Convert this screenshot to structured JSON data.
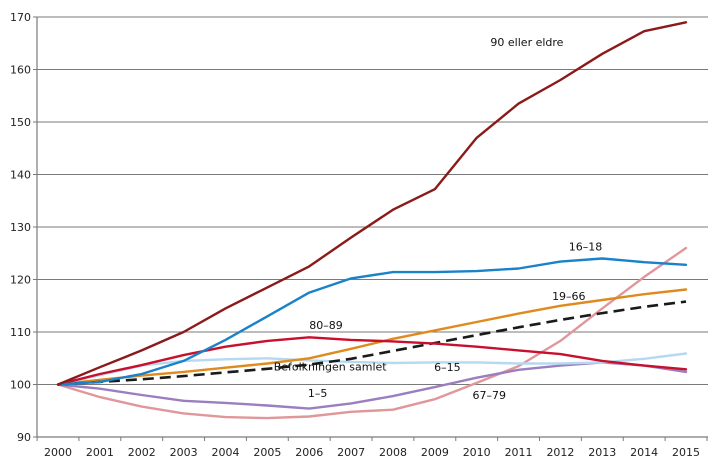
{
  "chart_data": {
    "type": "line",
    "title": "",
    "xlabel": "",
    "ylabel": "",
    "x": [
      2000,
      2001,
      2002,
      2003,
      2004,
      2005,
      2006,
      2007,
      2008,
      2009,
      2010,
      2011,
      2012,
      2013,
      2014,
      2015
    ],
    "x_tick_labels": [
      "2000",
      "2001",
      "2002",
      "2003",
      "2004",
      "2005",
      "2006",
      "2007",
      "2008",
      "2009",
      "2010",
      "2011",
      "2012",
      "2013",
      "2014",
      "2015"
    ],
    "ylim": [
      90,
      170
    ],
    "y_ticks": [
      90,
      100,
      110,
      120,
      130,
      140,
      150,
      160,
      170
    ],
    "y_tick_labels": [
      "90",
      "100",
      "110",
      "120",
      "130",
      "140",
      "150",
      "160",
      "170"
    ],
    "grid": "horizontal",
    "legend": "none (inline labels)",
    "series": [
      {
        "name": "90 eller eldre",
        "label": "90 eller eldre",
        "color": "#8b1a1a",
        "dashed": false,
        "values": [
          100,
          103.3,
          106.5,
          110,
          114.5,
          118.5,
          122.5,
          128,
          133.3,
          137.2,
          147,
          153.5,
          158,
          163,
          167.3,
          169
        ]
      },
      {
        "name": "16–18",
        "label": "16–18",
        "color": "#1a82c8",
        "dashed": false,
        "values": [
          100,
          100.5,
          102,
          104.5,
          108.5,
          113,
          117.5,
          120.2,
          121.4,
          121.4,
          121.6,
          122.1,
          123.4,
          124,
          123.3,
          122.8
        ]
      },
      {
        "name": "19–66",
        "label": "19–66",
        "color": "#e08a1e",
        "dashed": false,
        "values": [
          100,
          100.9,
          101.7,
          102.4,
          103.2,
          104,
          105,
          106.8,
          108.7,
          110.3,
          111.9,
          113.5,
          115,
          116.1,
          117.2,
          118.1
        ]
      },
      {
        "name": "Befolkningen samlet",
        "label": "Befolkningen samlet",
        "color": "#1a1a1a",
        "dashed": true,
        "values": [
          100,
          100.5,
          101,
          101.6,
          102.3,
          103,
          103.8,
          104.9,
          106.4,
          107.9,
          109.4,
          110.9,
          112.3,
          113.6,
          114.8,
          115.8
        ]
      },
      {
        "name": "6–15",
        "label": "6–15",
        "color": "#b5d9f0",
        "dashed": false,
        "values": [
          100,
          101.8,
          103.6,
          104.5,
          104.8,
          105,
          104.6,
          104.3,
          104.1,
          104.2,
          104.2,
          104.0,
          104.0,
          104.2,
          104.9,
          105.9
        ]
      },
      {
        "name": "1–5",
        "label": "1–5",
        "color": "#9a7ec0",
        "dashed": false,
        "values": [
          100,
          99.2,
          98.0,
          96.9,
          96.5,
          96.0,
          95.4,
          96.4,
          97.8,
          99.5,
          101.3,
          102.8,
          103.6,
          104.2,
          103.6,
          102.4
        ]
      },
      {
        "name": "80–89",
        "label": "80–89",
        "color": "#c8102e",
        "dashed": false,
        "values": [
          100,
          102,
          103.7,
          105.6,
          107.2,
          108.3,
          109,
          108.5,
          108.2,
          107.8,
          107.2,
          106.5,
          105.8,
          104.5,
          103.6,
          102.9
        ]
      },
      {
        "name": "67–79",
        "label": "67–79",
        "color": "#e0979a",
        "dashed": false,
        "values": [
          100,
          97.6,
          95.8,
          94.5,
          93.8,
          93.6,
          93.9,
          94.8,
          95.2,
          97.2,
          100.3,
          103.5,
          108.3,
          114.5,
          120.5,
          126
        ]
      }
    ],
    "annotations": [
      {
        "text": "90 eller eldre",
        "x": 2011.2,
        "y": 164.5
      },
      {
        "text": "16–18",
        "x": 2012.6,
        "y": 125.5
      },
      {
        "text": "19–66",
        "x": 2012.2,
        "y": 116.1
      },
      {
        "text": "80–89",
        "x": 2006.4,
        "y": 110.6
      },
      {
        "text": "Befolkningen samlet",
        "x": 2006.5,
        "y": 102.7
      },
      {
        "text": "6–15",
        "x": 2009.3,
        "y": 102.6
      },
      {
        "text": "1–5",
        "x": 2006.2,
        "y": 97.6
      },
      {
        "text": "67–79",
        "x": 2010.3,
        "y": 97.2
      }
    ]
  }
}
